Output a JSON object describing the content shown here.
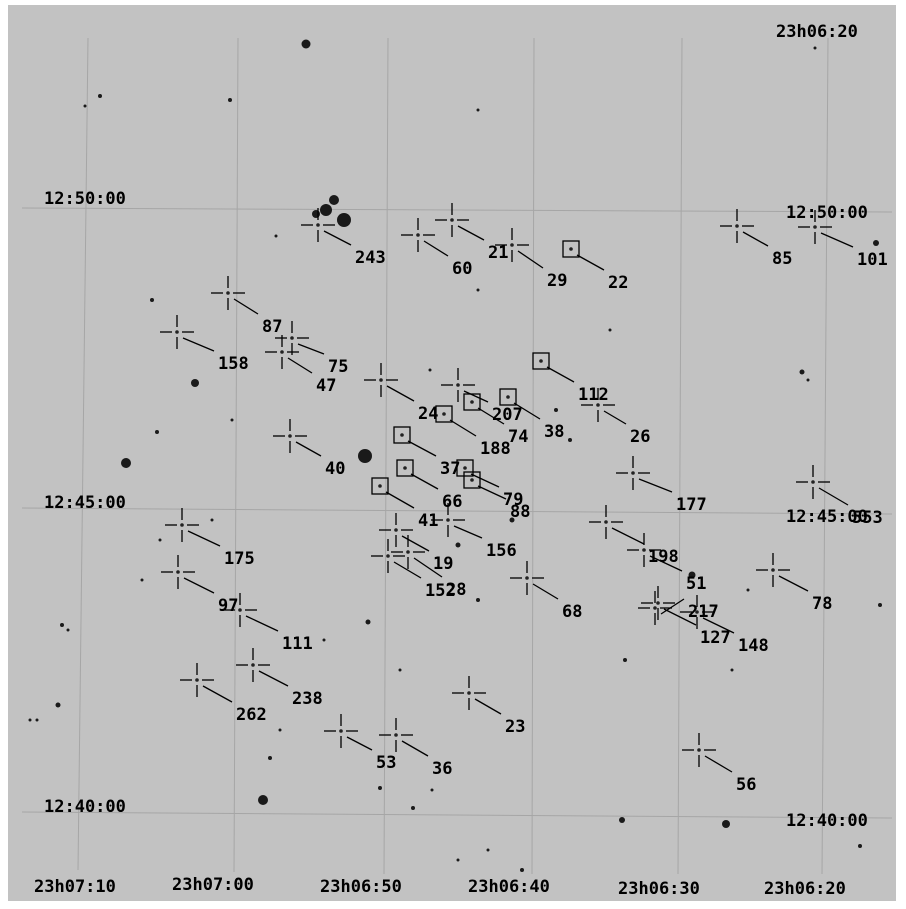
{
  "chart_data": {
    "type": "scatter",
    "ra_labels": [
      "23h07:10",
      "23h07:00",
      "23h06:50",
      "23h06:40",
      "23h06:30",
      "23h06:20",
      "23h06:20"
    ],
    "dec_labels": [
      "12:50:00",
      "12:45:00",
      "12:40:00",
      "12:50:00",
      "12:45:00",
      "12:40:00"
    ],
    "objects": [
      {
        "id": "243",
        "marker": "cross"
      },
      {
        "id": "60",
        "marker": "cross"
      },
      {
        "id": "21",
        "marker": "cross"
      },
      {
        "id": "29",
        "marker": "cross"
      },
      {
        "id": "22",
        "marker": "square"
      },
      {
        "id": "85",
        "marker": "cross"
      },
      {
        "id": "101",
        "marker": "cross"
      },
      {
        "id": "87",
        "marker": "cross"
      },
      {
        "id": "158",
        "marker": "cross"
      },
      {
        "id": "75",
        "marker": "cross"
      },
      {
        "id": "47",
        "marker": "cross"
      },
      {
        "id": "24",
        "marker": "cross"
      },
      {
        "id": "207",
        "marker": "cross"
      },
      {
        "id": "112",
        "marker": "square"
      },
      {
        "id": "188",
        "marker": "square"
      },
      {
        "id": "74",
        "marker": "square"
      },
      {
        "id": "38",
        "marker": "square"
      },
      {
        "id": "26",
        "marker": "cross"
      },
      {
        "id": "40",
        "marker": "cross"
      },
      {
        "id": "37",
        "marker": "square"
      },
      {
        "id": "66",
        "marker": "square"
      },
      {
        "id": "79",
        "marker": "square"
      },
      {
        "id": "88",
        "marker": "square"
      },
      {
        "id": "177",
        "marker": "cross"
      },
      {
        "id": "41",
        "marker": "square"
      },
      {
        "id": "156",
        "marker": "cross"
      },
      {
        "id": "175",
        "marker": "cross"
      },
      {
        "id": "19",
        "marker": "cross"
      },
      {
        "id": "152",
        "marker": "cross"
      },
      {
        "id": "28",
        "marker": "cross"
      },
      {
        "id": "198",
        "marker": "cross"
      },
      {
        "id": "51",
        "marker": "cross"
      },
      {
        "id": "553",
        "marker": "cross"
      },
      {
        "id": "78",
        "marker": "cross"
      },
      {
        "id": "97",
        "marker": "cross"
      },
      {
        "id": "111",
        "marker": "cross"
      },
      {
        "id": "68",
        "marker": "cross"
      },
      {
        "id": "217",
        "marker": "cross"
      },
      {
        "id": "127",
        "marker": "cross"
      },
      {
        "id": "148",
        "marker": "cross"
      },
      {
        "id": "238",
        "marker": "cross"
      },
      {
        "id": "262",
        "marker": "cross"
      },
      {
        "id": "23",
        "marker": "cross"
      },
      {
        "id": "53",
        "marker": "cross"
      },
      {
        "id": "36",
        "marker": "cross"
      },
      {
        "id": "56",
        "marker": "cross"
      }
    ]
  }
}
